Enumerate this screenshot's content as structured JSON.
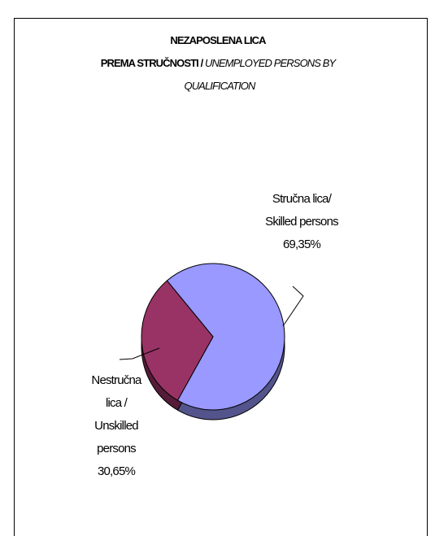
{
  "chart_data": {
    "type": "pie",
    "title": [
      "NEZAPOSLENA LICA",
      "PREMA STRUČNOSTI /"
    ],
    "subtitle": [
      "UNEMPLOYED PERSONS BY",
      "QUALIFICATION"
    ],
    "categories": [
      "Stručna lica/ Skilled persons",
      "Nestručna lica / Unskilled persons"
    ],
    "values": [
      69.35,
      30.65
    ],
    "value_labels": [
      "69,35%",
      "30,65%"
    ],
    "colors": [
      "#9999ff",
      "#993366"
    ]
  }
}
